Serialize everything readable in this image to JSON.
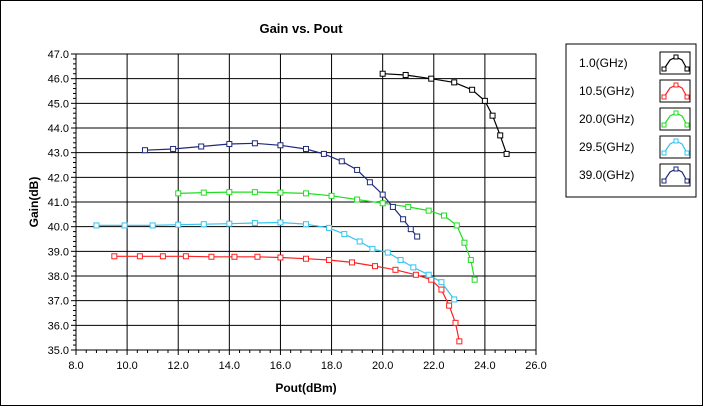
{
  "chart_data": {
    "type": "line",
    "title": "Gain vs. Pout",
    "xlabel": "Pout(dBm)",
    "ylabel": "Gain(dB)",
    "xlim": [
      8.0,
      26.0
    ],
    "ylim": [
      35.0,
      47.0
    ],
    "x_ticks": [
      "8.0",
      "10.0",
      "12.0",
      "14.0",
      "16.0",
      "18.0",
      "20.0",
      "22.0",
      "24.0",
      "26.0"
    ],
    "y_ticks": [
      "35.0",
      "36.0",
      "37.0",
      "38.0",
      "39.0",
      "40.0",
      "41.0",
      "42.0",
      "43.0",
      "44.0",
      "45.0",
      "46.0",
      "47.0"
    ],
    "grid": true,
    "legend_position": "right",
    "series": [
      {
        "name": "1.0(GHz)",
        "color": "#000000",
        "x": [
          20.0,
          20.9,
          21.9,
          22.8,
          23.5,
          24.0,
          24.3,
          24.6,
          24.85
        ],
        "y": [
          46.2,
          46.15,
          46.0,
          45.85,
          45.55,
          45.1,
          44.5,
          43.7,
          42.95
        ]
      },
      {
        "name": "10.5(GHz)",
        "color": "#ff2020",
        "x": [
          9.5,
          10.5,
          11.4,
          12.3,
          13.3,
          14.2,
          15.1,
          16.0,
          17.0,
          17.9,
          18.8,
          19.7,
          20.5,
          21.3,
          21.9,
          22.3,
          22.6,
          22.85,
          23.0
        ],
        "y": [
          38.8,
          38.8,
          38.8,
          38.8,
          38.78,
          38.78,
          38.78,
          38.75,
          38.7,
          38.65,
          38.55,
          38.4,
          38.25,
          38.05,
          37.85,
          37.45,
          36.8,
          36.1,
          35.35
        ]
      },
      {
        "name": "20.0(GHz)",
        "color": "#22dd22",
        "x": [
          12.0,
          13.0,
          14.0,
          15.0,
          16.0,
          17.0,
          18.0,
          19.0,
          20.0,
          21.0,
          21.8,
          22.4,
          22.9,
          23.2,
          23.45,
          23.6
        ],
        "y": [
          41.35,
          41.38,
          41.4,
          41.4,
          41.38,
          41.35,
          41.25,
          41.1,
          40.95,
          40.8,
          40.65,
          40.45,
          40.05,
          39.35,
          38.65,
          37.85
        ]
      },
      {
        "name": "29.5(GHz)",
        "color": "#33c4f0",
        "x": [
          8.8,
          9.9,
          11.0,
          12.0,
          13.0,
          14.0,
          15.0,
          16.0,
          17.0,
          17.9,
          18.5,
          19.1,
          19.6,
          20.2,
          20.7,
          21.2,
          21.8,
          22.3,
          22.8
        ],
        "y": [
          40.05,
          40.05,
          40.05,
          40.08,
          40.1,
          40.12,
          40.15,
          40.17,
          40.1,
          39.95,
          39.7,
          39.4,
          39.1,
          38.95,
          38.65,
          38.35,
          38.05,
          37.75,
          37.05
        ]
      },
      {
        "name": "39.0(GHz)",
        "color": "#1f2a7a",
        "x": [
          10.7,
          11.8,
          12.9,
          14.0,
          15.0,
          16.0,
          17.0,
          17.7,
          18.4,
          19.0,
          19.5,
          20.0,
          20.4,
          20.8,
          21.1,
          21.35
        ],
        "y": [
          43.1,
          43.15,
          43.25,
          43.35,
          43.38,
          43.3,
          43.15,
          42.95,
          42.65,
          42.3,
          41.8,
          41.3,
          40.8,
          40.3,
          39.9,
          39.6
        ]
      }
    ]
  }
}
